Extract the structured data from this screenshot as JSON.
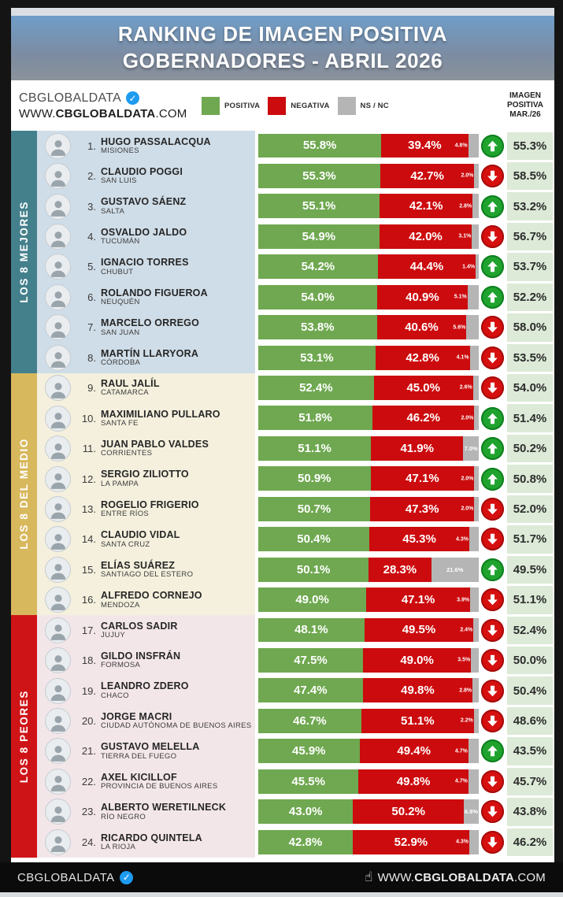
{
  "header": {
    "title_line1": "RANKING DE IMAGEN POSITIVA",
    "title_line2": "GOBERNADORES - ABRIL 2026"
  },
  "brandbar": {
    "brand": "CBGLOBALDATA",
    "url_prefix": "WWW.",
    "url_bold": "CBGLOBALDATA",
    "url_suffix": ".COM",
    "legend": [
      {
        "label": "POSITIVA",
        "color": "#6fa850"
      },
      {
        "label": "NEGATIVA",
        "color": "#cc0b0e"
      },
      {
        "label": "NS / NC",
        "color": "#b5b5b5"
      }
    ],
    "prev_header": [
      "IMAGEN",
      "POSITIVA",
      "MAR./26"
    ]
  },
  "colors": {
    "positive_bar": "#6fa850",
    "negative_bar": "#cc0b0e",
    "nsnc_bar": "#b5b5b5",
    "up_circle": "#1fa32e",
    "up_circle_rim": "#0e7f1e",
    "down_circle": "#d60f0f",
    "down_circle_rim": "#a50b0b",
    "prev_cell": "#dcead7",
    "badge_blue": "#1d9bf0"
  },
  "sections": [
    {
      "label": "LOS 8 MEJORES",
      "strip_color": "#44808c",
      "row_bg": "#cfdde8",
      "row_start": 0,
      "row_count": 8
    },
    {
      "label": "LOS 8 DEL MEDIO",
      "strip_color": "#d8b85c",
      "row_bg": "#f4f0dd",
      "row_start": 8,
      "row_count": 8
    },
    {
      "label": "LOS 8 PEORES",
      "strip_color": "#cf1418",
      "row_bg": "#f3e6e9",
      "row_start": 16,
      "row_count": 8
    }
  ],
  "rows": [
    {
      "rank_label": "1.",
      "name": "HUGO PASSALACQUA",
      "region": "MISIONES",
      "positive": 55.8,
      "negative": 39.4,
      "nsnc": 4.8,
      "positive_label": "55.8%",
      "negative_label": "39.4%",
      "nsnc_label": "4.8%",
      "trend": "up",
      "previous_label": "55.3%"
    },
    {
      "rank_label": "2.",
      "name": "CLAUDIO POGGI",
      "region": "SAN LUIS",
      "positive": 55.3,
      "negative": 42.7,
      "nsnc": 2.0,
      "positive_label": "55.3%",
      "negative_label": "42.7%",
      "nsnc_label": "2.0%",
      "trend": "down",
      "previous_label": "58.5%"
    },
    {
      "rank_label": "3.",
      "name": "GUSTAVO SÁENZ",
      "region": "SALTA",
      "positive": 55.1,
      "negative": 42.1,
      "nsnc": 2.8,
      "positive_label": "55.1%",
      "negative_label": "42.1%",
      "nsnc_label": "2.8%",
      "trend": "up",
      "previous_label": "53.2%"
    },
    {
      "rank_label": "4.",
      "name": "OSVALDO JALDO",
      "region": "TUCUMÁN",
      "positive": 54.9,
      "negative": 42.0,
      "nsnc": 3.1,
      "positive_label": "54.9%",
      "negative_label": "42.0%",
      "nsnc_label": "3.1%",
      "trend": "down",
      "previous_label": "56.7%"
    },
    {
      "rank_label": "5.",
      "name": "IGNACIO TORRES",
      "region": "CHUBUT",
      "positive": 54.2,
      "negative": 44.4,
      "nsnc": 1.4,
      "positive_label": "54.2%",
      "negative_label": "44.4%",
      "nsnc_label": "1.4%",
      "trend": "up",
      "previous_label": "53.7%"
    },
    {
      "rank_label": "6.",
      "name": "ROLANDO FIGUEROA",
      "region": "NEUQUÉN",
      "positive": 54.0,
      "negative": 40.9,
      "nsnc": 5.1,
      "positive_label": "54.0%",
      "negative_label": "40.9%",
      "nsnc_label": "5.1%",
      "trend": "up",
      "previous_label": "52.2%"
    },
    {
      "rank_label": "7.",
      "name": "MARCELO ORREGO",
      "region": "SAN JUAN",
      "positive": 53.8,
      "negative": 40.6,
      "nsnc": 5.6,
      "positive_label": "53.8%",
      "negative_label": "40.6%",
      "nsnc_label": "5.6%",
      "trend": "down",
      "previous_label": "58.0%"
    },
    {
      "rank_label": "8.",
      "name": "MARTÍN LLARYORA",
      "region": "CÓRDOBA",
      "positive": 53.1,
      "negative": 42.8,
      "nsnc": 4.1,
      "positive_label": "53.1%",
      "negative_label": "42.8%",
      "nsnc_label": "4.1%",
      "trend": "down",
      "previous_label": "53.5%"
    },
    {
      "rank_label": "9.",
      "name": "RAUL JALÍL",
      "region": "CATAMARCA",
      "positive": 52.4,
      "negative": 45.0,
      "nsnc": 2.6,
      "positive_label": "52.4%",
      "negative_label": "45.0%",
      "nsnc_label": "2.6%",
      "trend": "down",
      "previous_label": "54.0%"
    },
    {
      "rank_label": "10.",
      "name": "MAXIMILIANO PULLARO",
      "region": "SANTA FE",
      "positive": 51.8,
      "negative": 46.2,
      "nsnc": 2.0,
      "positive_label": "51.8%",
      "negative_label": "46.2%",
      "nsnc_label": "2.0%",
      "trend": "up",
      "previous_label": "51.4%"
    },
    {
      "rank_label": "11.",
      "name": "JUAN PABLO VALDES",
      "region": "CORRIENTES",
      "positive": 51.1,
      "negative": 41.9,
      "nsnc": 7.0,
      "positive_label": "51.1%",
      "negative_label": "41.9%",
      "nsnc_label": "7.0%",
      "trend": "up",
      "previous_label": "50.2%"
    },
    {
      "rank_label": "12.",
      "name": "SERGIO ZILIOTTO",
      "region": "LA PAMPA",
      "positive": 50.9,
      "negative": 47.1,
      "nsnc": 2.0,
      "positive_label": "50.9%",
      "negative_label": "47.1%",
      "nsnc_label": "2.0%",
      "trend": "up",
      "previous_label": "50.8%"
    },
    {
      "rank_label": "13.",
      "name": "ROGELIO FRIGERIO",
      "region": "ENTRE RÍOS",
      "positive": 50.7,
      "negative": 47.3,
      "nsnc": 2.0,
      "positive_label": "50.7%",
      "negative_label": "47.3%",
      "nsnc_label": "2.0%",
      "trend": "down",
      "previous_label": "52.0%"
    },
    {
      "rank_label": "14.",
      "name": "CLAUDIO VIDAL",
      "region": "SANTA CRUZ",
      "positive": 50.4,
      "negative": 45.3,
      "nsnc": 4.3,
      "positive_label": "50.4%",
      "negative_label": "45.3%",
      "nsnc_label": "4.3%",
      "trend": "down",
      "previous_label": "51.7%"
    },
    {
      "rank_label": "15.",
      "name": "ELÍAS SUÁREZ",
      "region": "SANTIAGO DEL ESTERO",
      "positive": 50.1,
      "negative": 28.3,
      "nsnc": 21.6,
      "positive_label": "50.1%",
      "negative_label": "28.3%",
      "nsnc_label": "21.6%",
      "trend": "up",
      "previous_label": "49.5%"
    },
    {
      "rank_label": "16.",
      "name": "ALFREDO CORNEJO",
      "region": "MENDOZA",
      "positive": 49.0,
      "negative": 47.1,
      "nsnc": 3.9,
      "positive_label": "49.0%",
      "negative_label": "47.1%",
      "nsnc_label": "3.9%",
      "trend": "down",
      "previous_label": "51.1%"
    },
    {
      "rank_label": "17.",
      "name": "CARLOS SADIR",
      "region": "JUJUY",
      "positive": 48.1,
      "negative": 49.5,
      "nsnc": 2.4,
      "positive_label": "48.1%",
      "negative_label": "49.5%",
      "nsnc_label": "2.4%",
      "trend": "down",
      "previous_label": "52.4%"
    },
    {
      "rank_label": "18.",
      "name": "GILDO INSFRÁN",
      "region": "FORMOSA",
      "positive": 47.5,
      "negative": 49.0,
      "nsnc": 3.5,
      "positive_label": "47.5%",
      "negative_label": "49.0%",
      "nsnc_label": "3.5%",
      "trend": "down",
      "previous_label": "50.0%"
    },
    {
      "rank_label": "19.",
      "name": "LEANDRO ZDERO",
      "region": "CHACO",
      "positive": 47.4,
      "negative": 49.8,
      "nsnc": 2.8,
      "positive_label": "47.4%",
      "negative_label": "49.8%",
      "nsnc_label": "2.8%",
      "trend": "down",
      "previous_label": "50.4%"
    },
    {
      "rank_label": "20.",
      "name": "JORGE MACRI",
      "region": "CIUDAD AUTÓNOMA DE BUENOS AIRES",
      "positive": 46.7,
      "negative": 51.1,
      "nsnc": 2.2,
      "positive_label": "46.7%",
      "negative_label": "51.1%",
      "nsnc_label": "2.2%",
      "trend": "down",
      "previous_label": "48.6%"
    },
    {
      "rank_label": "21.",
      "name": "GUSTAVO MELELLA",
      "region": "TIERRA DEL FUEGO",
      "positive": 45.9,
      "negative": 49.4,
      "nsnc": 4.7,
      "positive_label": "45.9%",
      "negative_label": "49.4%",
      "nsnc_label": "4.7%",
      "trend": "up",
      "previous_label": "43.5%"
    },
    {
      "rank_label": "22.",
      "name": "AXEL KICILLOF",
      "region": "PROVINCIA DE BUENOS AIRES",
      "positive": 45.5,
      "negative": 49.8,
      "nsnc": 4.7,
      "positive_label": "45.5%",
      "negative_label": "49.8%",
      "nsnc_label": "4.7%",
      "trend": "down",
      "previous_label": "45.7%"
    },
    {
      "rank_label": "23.",
      "name": "ALBERTO WERETILNECK",
      "region": "RÍO NEGRO",
      "positive": 43.0,
      "negative": 50.2,
      "nsnc": 6.8,
      "positive_label": "43.0%",
      "negative_label": "50.2%",
      "nsnc_label": "6.8%",
      "trend": "down",
      "previous_label": "43.8%"
    },
    {
      "rank_label": "24.",
      "name": "RICARDO QUINTELA",
      "region": "LA RIOJA",
      "positive": 42.8,
      "negative": 52.9,
      "nsnc": 4.3,
      "positive_label": "42.8%",
      "negative_label": "52.9%",
      "nsnc_label": "4.3%",
      "trend": "down",
      "previous_label": "46.2%"
    }
  ],
  "footer": {
    "brand": "CBGLOBALDATA",
    "url_prefix": "WWW.",
    "url_bold": "CBGLOBALDATA",
    "url_suffix": ".COM"
  },
  "chart_data": {
    "type": "bar",
    "subtype": "stacked-horizontal",
    "title": "RANKING DE IMAGEN POSITIVA GOBERNADORES - ABRIL 2026",
    "xlim": [
      0,
      100
    ],
    "legend_position": "top",
    "categories": [
      "HUGO PASSALACQUA (MISIONES)",
      "CLAUDIO POGGI (SAN LUIS)",
      "GUSTAVO SÁENZ (SALTA)",
      "OSVALDO JALDO (TUCUMÁN)",
      "IGNACIO TORRES (CHUBUT)",
      "ROLANDO FIGUEROA (NEUQUÉN)",
      "MARCELO ORREGO (SAN JUAN)",
      "MARTÍN LLARYORA (CÓRDOBA)",
      "RAUL JALÍL (CATAMARCA)",
      "MAXIMILIANO PULLARO (SANTA FE)",
      "JUAN PABLO VALDES (CORRIENTES)",
      "SERGIO ZILIOTTO (LA PAMPA)",
      "ROGELIO FRIGERIO (ENTRE RÍOS)",
      "CLAUDIO VIDAL (SANTA CRUZ)",
      "ELÍAS SUÁREZ (SANTIAGO DEL ESTERO)",
      "ALFREDO CORNEJO (MENDOZA)",
      "CARLOS SADIR (JUJUY)",
      "GILDO INSFRÁN (FORMOSA)",
      "LEANDRO ZDERO (CHACO)",
      "JORGE MACRI (CIUDAD AUTÓNOMA DE BUENOS AIRES)",
      "GUSTAVO MELELLA (TIERRA DEL FUEGO)",
      "AXEL KICILLOF (PROVINCIA DE BUENOS AIRES)",
      "ALBERTO WERETILNECK (RÍO NEGRO)",
      "RICARDO QUINTELA (LA RIOJA)"
    ],
    "series": [
      {
        "name": "POSITIVA",
        "color": "#6fa850",
        "values": [
          55.8,
          55.3,
          55.1,
          54.9,
          54.2,
          54.0,
          53.8,
          53.1,
          52.4,
          51.8,
          51.1,
          50.9,
          50.7,
          50.4,
          50.1,
          49.0,
          48.1,
          47.5,
          47.4,
          46.7,
          45.9,
          45.5,
          43.0,
          42.8
        ]
      },
      {
        "name": "NEGATIVA",
        "color": "#cc0b0e",
        "values": [
          39.4,
          42.7,
          42.1,
          42.0,
          44.4,
          40.9,
          40.6,
          42.8,
          45.0,
          46.2,
          41.9,
          47.1,
          47.3,
          45.3,
          28.3,
          47.1,
          49.5,
          49.0,
          49.8,
          51.1,
          49.4,
          49.8,
          50.2,
          52.9
        ]
      },
      {
        "name": "NS / NC",
        "color": "#b5b5b5",
        "values": [
          4.8,
          2.0,
          2.8,
          3.1,
          1.4,
          5.1,
          5.6,
          4.1,
          2.6,
          2.0,
          7.0,
          2.0,
          2.0,
          4.3,
          21.6,
          3.9,
          2.4,
          3.5,
          2.8,
          2.2,
          4.7,
          4.7,
          6.8,
          4.3
        ]
      },
      {
        "name": "IMAGEN POSITIVA MAR./26",
        "color": "#dcead7",
        "values": [
          55.3,
          58.5,
          53.2,
          56.7,
          53.7,
          52.2,
          58.0,
          53.5,
          54.0,
          51.4,
          50.2,
          50.8,
          52.0,
          51.7,
          49.5,
          51.1,
          52.4,
          50.0,
          50.4,
          48.6,
          43.5,
          45.7,
          43.8,
          46.2
        ]
      }
    ],
    "trend_vs_previous": [
      "up",
      "down",
      "up",
      "down",
      "up",
      "up",
      "down",
      "down",
      "down",
      "up",
      "up",
      "up",
      "down",
      "down",
      "up",
      "down",
      "down",
      "down",
      "down",
      "down",
      "up",
      "down",
      "down",
      "up_is_false_for_24:down"
    ]
  }
}
